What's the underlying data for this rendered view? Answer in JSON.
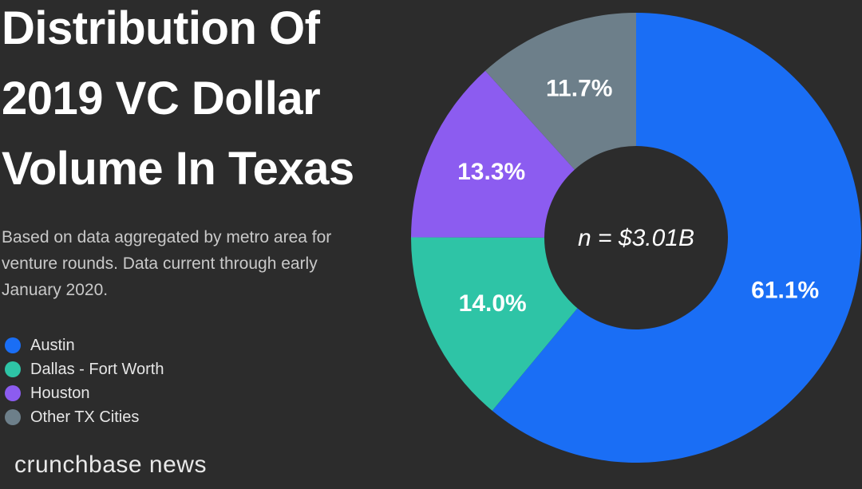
{
  "chart_data": {
    "type": "pie",
    "title": "Distribution Of 2019 VC Dollar Volume In Texas",
    "subtitle": "Based on data aggregated by metro area for venture rounds. Data current through early January 2020.",
    "center_label": "n = $3.01B",
    "categories": [
      "Austin",
      "Dallas - Fort Worth",
      "Houston",
      "Other TX Cities"
    ],
    "values": [
      61.1,
      14.0,
      13.3,
      11.7
    ],
    "value_labels": [
      "61.1%",
      "14.0%",
      "13.3%",
      "11.7%"
    ],
    "colors": [
      "#1a6ef5",
      "#2ec4a6",
      "#8c5cf0",
      "#6d7f8a"
    ],
    "donut": true,
    "source": "crunchbase news"
  }
}
